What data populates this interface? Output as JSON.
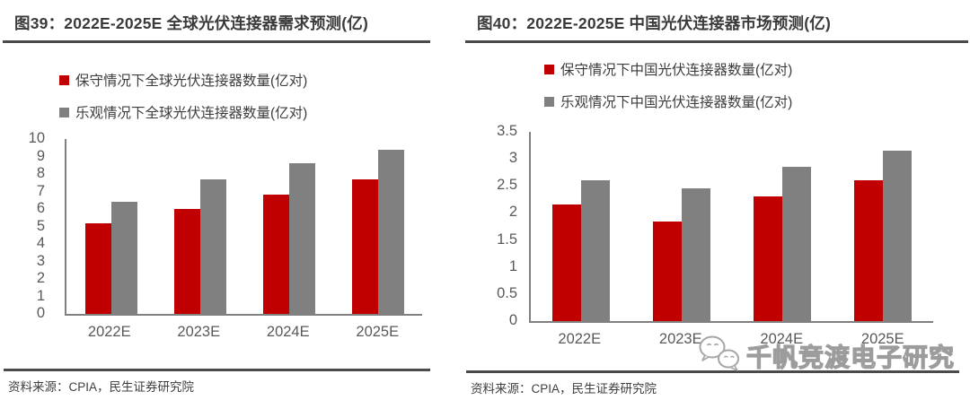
{
  "chart_data": [
    {
      "type": "bar",
      "title": "图39：2022E-2025E 全球光伏连接器需求预测(亿)",
      "categories": [
        "2022E",
        "2023E",
        "2024E",
        "2025E"
      ],
      "series": [
        {
          "name": "保守情况下全球光伏连接器数量(亿对)",
          "color": "#c00000",
          "values": [
            5.2,
            6.0,
            6.8,
            7.7
          ]
        },
        {
          "name": "乐观情况下全球光伏连接器数量(亿对)",
          "color": "#808080",
          "values": [
            6.4,
            7.7,
            8.6,
            9.4
          ]
        }
      ],
      "xlabel": "",
      "ylabel": "",
      "ylim": [
        0,
        10
      ],
      "ytick_step": 1,
      "grid": false,
      "legend_position": "top-left",
      "source": "资料来源：CPIA，民生证券研究院"
    },
    {
      "type": "bar",
      "title": "图40：2022E-2025E 中国光伏连接器市场预测(亿)",
      "categories": [
        "2022E",
        "2023E",
        "2024E",
        "2025E"
      ],
      "series": [
        {
          "name": "保守情况下中国光伏连接器数量(亿对)",
          "color": "#c00000",
          "values": [
            2.15,
            1.85,
            2.3,
            2.6
          ]
        },
        {
          "name": "乐观情况下中国光伏连接器数量(亿对)",
          "color": "#808080",
          "values": [
            2.6,
            2.45,
            2.85,
            3.15
          ]
        }
      ],
      "xlabel": "",
      "ylabel": "",
      "ylim": [
        0,
        3.5
      ],
      "ytick_step": 0.5,
      "grid": false,
      "legend_position": "top-left",
      "source": "资料来源：CPIA，民生证券研究院"
    }
  ],
  "watermark": {
    "text": "千帆竞渡电子研究",
    "icon": "wechat-icon"
  },
  "colors": {
    "conservative_red": "#c00000",
    "optimistic_gray": "#808080",
    "axis_line": "#808080",
    "tick_text": "#595959",
    "title_text": "#3a3a3a",
    "rule": "#4a4a4a",
    "watermark_outline": "#9c9c9c"
  }
}
